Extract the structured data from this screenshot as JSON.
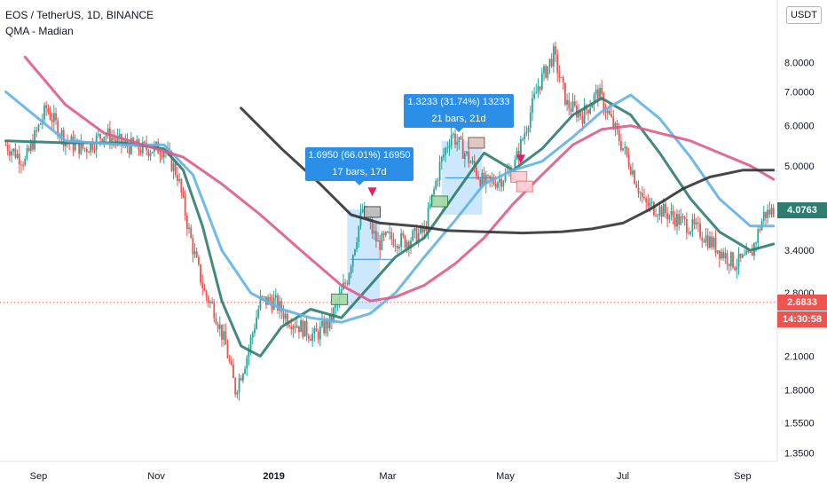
{
  "header": {
    "symbol": "EOS / TetherUS, 1D, BINANCE",
    "indicator": "QMA - Madian"
  },
  "unit_button": "USDT",
  "colors": {
    "up": "#26a69a",
    "down": "#ef5350",
    "ma_teal": "#2e7d6e",
    "ma_blue": "#5fb3e5",
    "ma_pink": "#e05a8a",
    "ma_black": "#333333",
    "tip": "#2b8fe8"
  },
  "badges": {
    "last_price": "4.0763",
    "level_price": "2.6833",
    "countdown": "14:30:58"
  },
  "annotations": [
    {
      "line1": "1.6950 (66.01%) 16950",
      "line2": "17 bars, 17d"
    },
    {
      "line1": "1.3233 (31.74%) 13233",
      "line2": "21 bars, 21d"
    }
  ],
  "chart_data": {
    "type": "line",
    "scale": "log",
    "y_ticks": [
      "8.0000",
      "7.0000",
      "6.0000",
      "5.0000",
      "3.4000",
      "2.8000",
      "2.1000",
      "1.8000",
      "1.5500",
      "1.3500"
    ],
    "y_tick_values": [
      8.0,
      7.0,
      6.0,
      5.0,
      3.4,
      2.8,
      2.1,
      1.8,
      1.55,
      1.35
    ],
    "ylim": [
      1.3,
      10.3
    ],
    "x_ticks": [
      "Sep",
      "Nov",
      "2019",
      "Mar",
      "May",
      "Jul",
      "Sep"
    ],
    "price_series": {
      "name": "EOS/USDT close",
      "x": [
        "2018-08-15",
        "2018-08-25",
        "2018-09-05",
        "2018-09-15",
        "2018-09-25",
        "2018-10-05",
        "2018-10-15",
        "2018-10-25",
        "2018-11-05",
        "2018-11-12",
        "2018-11-18",
        "2018-11-22",
        "2018-11-26",
        "2018-12-01",
        "2018-12-07",
        "2018-12-12",
        "2018-12-18",
        "2018-12-25",
        "2019-01-01",
        "2019-01-08",
        "2019-01-15",
        "2019-01-22",
        "2019-01-30",
        "2019-02-08",
        "2019-02-16",
        "2019-02-24",
        "2019-03-01",
        "2019-03-10",
        "2019-03-20",
        "2019-03-28",
        "2019-04-03",
        "2019-04-10",
        "2019-04-20",
        "2019-04-28",
        "2019-05-05",
        "2019-05-12",
        "2019-05-18",
        "2019-05-26",
        "2019-06-02",
        "2019-06-10",
        "2019-06-18",
        "2019-06-26",
        "2019-07-05",
        "2019-07-12",
        "2019-07-20",
        "2019-07-30",
        "2019-08-10",
        "2019-08-20",
        "2019-08-28",
        "2019-09-05",
        "2019-09-12",
        "2019-09-17"
      ],
      "values": [
        5.5,
        5.1,
        6.5,
        5.6,
        5.4,
        5.8,
        5.5,
        5.4,
        5.4,
        4.8,
        3.7,
        3.2,
        2.8,
        2.6,
        2.2,
        1.8,
        2.1,
        2.7,
        2.7,
        2.5,
        2.4,
        2.3,
        2.45,
        3.0,
        4.1,
        3.5,
        3.6,
        3.55,
        3.7,
        5.0,
        5.8,
        5.3,
        4.6,
        4.7,
        4.9,
        6.0,
        7.2,
        8.3,
        6.6,
        6.3,
        7.0,
        6.0,
        5.0,
        4.2,
        4.1,
        3.9,
        3.7,
        3.4,
        3.2,
        3.3,
        4.0,
        4.08
      ]
    },
    "moving_averages": [
      {
        "key": "ma_teal",
        "x": [
          "2018-08-15",
          "2018-09-15",
          "2018-10-15",
          "2018-11-05",
          "2018-11-15",
          "2018-11-25",
          "2018-12-05",
          "2018-12-15",
          "2018-12-25",
          "2019-01-05",
          "2019-01-20",
          "2019-02-05",
          "2019-02-20",
          "2019-03-05",
          "2019-03-20",
          "2019-04-05",
          "2019-04-20",
          "2019-05-05",
          "2019-05-20",
          "2019-06-05",
          "2019-06-20",
          "2019-07-05",
          "2019-07-20",
          "2019-08-05",
          "2019-08-20",
          "2019-09-05",
          "2019-09-17"
        ],
        "values": [
          5.6,
          5.55,
          5.55,
          5.4,
          4.9,
          3.8,
          2.7,
          2.2,
          2.1,
          2.4,
          2.6,
          2.5,
          2.9,
          3.3,
          3.6,
          4.4,
          5.3,
          4.9,
          5.4,
          6.3,
          6.8,
          6.3,
          5.3,
          4.3,
          3.7,
          3.4,
          3.5
        ]
      },
      {
        "key": "ma_blue",
        "x": [
          "2018-08-15",
          "2018-09-15",
          "2018-10-15",
          "2018-11-05",
          "2018-11-20",
          "2018-12-05",
          "2018-12-20",
          "2019-01-05",
          "2019-01-20",
          "2019-02-05",
          "2019-02-20",
          "2019-03-05",
          "2019-03-20",
          "2019-04-05",
          "2019-04-20",
          "2019-05-05",
          "2019-05-20",
          "2019-06-05",
          "2019-06-20",
          "2019-07-05",
          "2019-07-20",
          "2019-08-05",
          "2019-08-20",
          "2019-09-05",
          "2019-09-17"
        ],
        "values": [
          7.0,
          5.6,
          5.5,
          5.5,
          4.8,
          3.4,
          2.8,
          2.6,
          2.5,
          2.45,
          2.55,
          2.8,
          3.3,
          3.9,
          4.6,
          4.9,
          5.1,
          5.7,
          6.4,
          6.9,
          6.2,
          5.2,
          4.3,
          3.8,
          3.8
        ]
      },
      {
        "key": "ma_pink",
        "x": [
          "2018-08-25",
          "2018-09-15",
          "2018-10-05",
          "2018-10-25",
          "2018-11-15",
          "2018-12-05",
          "2018-12-25",
          "2019-01-15",
          "2019-02-05",
          "2019-02-20",
          "2019-03-05",
          "2019-03-20",
          "2019-04-05",
          "2019-04-20",
          "2019-05-05",
          "2019-05-20",
          "2019-06-05",
          "2019-06-20",
          "2019-07-05",
          "2019-07-20",
          "2019-08-05",
          "2019-08-20",
          "2019-09-05",
          "2019-09-17"
        ],
        "values": [
          8.2,
          6.6,
          5.8,
          5.5,
          5.2,
          4.6,
          4.0,
          3.4,
          2.9,
          2.7,
          2.75,
          2.9,
          3.2,
          3.6,
          4.2,
          4.8,
          5.5,
          5.9,
          6.0,
          5.8,
          5.6,
          5.3,
          5.0,
          4.7
        ]
      },
      {
        "key": "ma_black",
        "x": [
          "2018-12-15",
          "2019-01-05",
          "2019-01-25",
          "2019-02-10",
          "2019-02-25",
          "2019-03-15",
          "2019-04-01",
          "2019-04-20",
          "2019-05-10",
          "2019-05-30",
          "2019-06-15",
          "2019-07-01",
          "2019-07-15",
          "2019-08-01",
          "2019-08-15",
          "2019-09-01",
          "2019-09-17"
        ],
        "values": [
          6.5,
          5.4,
          4.6,
          4.0,
          3.85,
          3.8,
          3.72,
          3.7,
          3.68,
          3.7,
          3.75,
          3.85,
          4.1,
          4.5,
          4.75,
          4.9,
          4.9
        ]
      }
    ]
  }
}
